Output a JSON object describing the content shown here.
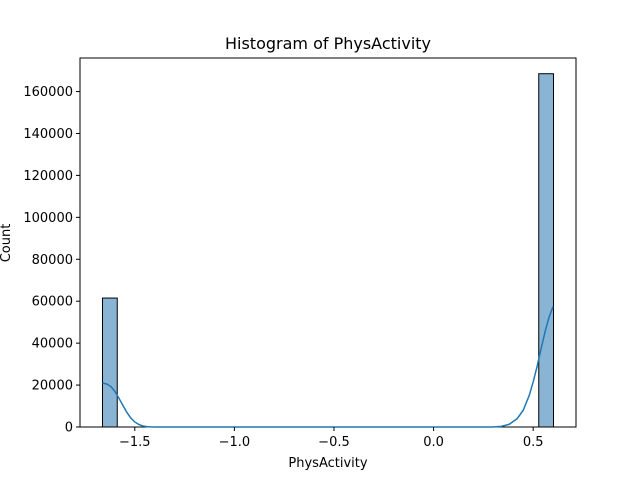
{
  "chart_data": {
    "type": "bar",
    "title": "Histogram of PhysActivity",
    "xlabel": "PhysActivity",
    "ylabel": "Count",
    "xlim": [
      -1.775,
      0.715
    ],
    "ylim": [
      0,
      176000
    ],
    "xticks": [
      -1.5,
      -1.0,
      -0.5,
      0.0,
      0.5
    ],
    "xtick_labels": [
      "−1.5",
      "−1.0",
      "−0.5",
      "0.0",
      "0.5"
    ],
    "yticks": [
      0,
      20000,
      40000,
      60000,
      80000,
      100000,
      120000,
      140000,
      160000
    ],
    "ytick_labels": [
      "0",
      "20000",
      "40000",
      "60000",
      "80000",
      "100000",
      "120000",
      "140000",
      "160000"
    ],
    "bars": [
      {
        "x0": -1.662,
        "x1": -1.588,
        "value": 61500
      },
      {
        "x0": 0.528,
        "x1": 0.602,
        "value": 168500
      }
    ],
    "kde": [
      [
        -1.662,
        21000
      ],
      [
        -1.64,
        20500
      ],
      [
        -1.62,
        19300
      ],
      [
        -1.6,
        17000
      ],
      [
        -1.58,
        13800
      ],
      [
        -1.56,
        10400
      ],
      [
        -1.54,
        7000
      ],
      [
        -1.52,
        4300
      ],
      [
        -1.5,
        2400
      ],
      [
        -1.48,
        1200
      ],
      [
        -1.46,
        500
      ],
      [
        -1.44,
        180
      ],
      [
        -1.42,
        60
      ],
      [
        -1.4,
        10
      ],
      [
        -1.35,
        0
      ],
      [
        0.3,
        0
      ],
      [
        0.34,
        300
      ],
      [
        0.38,
        1300
      ],
      [
        0.42,
        4000
      ],
      [
        0.45,
        8000
      ],
      [
        0.48,
        15000
      ],
      [
        0.5,
        21500
      ],
      [
        0.52,
        29000
      ],
      [
        0.54,
        37500
      ],
      [
        0.56,
        45500
      ],
      [
        0.58,
        52500
      ],
      [
        0.6,
        57500
      ]
    ],
    "colors": {
      "bar_fill": "#89b4d4",
      "bar_edge": "#000000",
      "kde_line": "#1f77b4"
    },
    "grid": false,
    "legend": false
  }
}
